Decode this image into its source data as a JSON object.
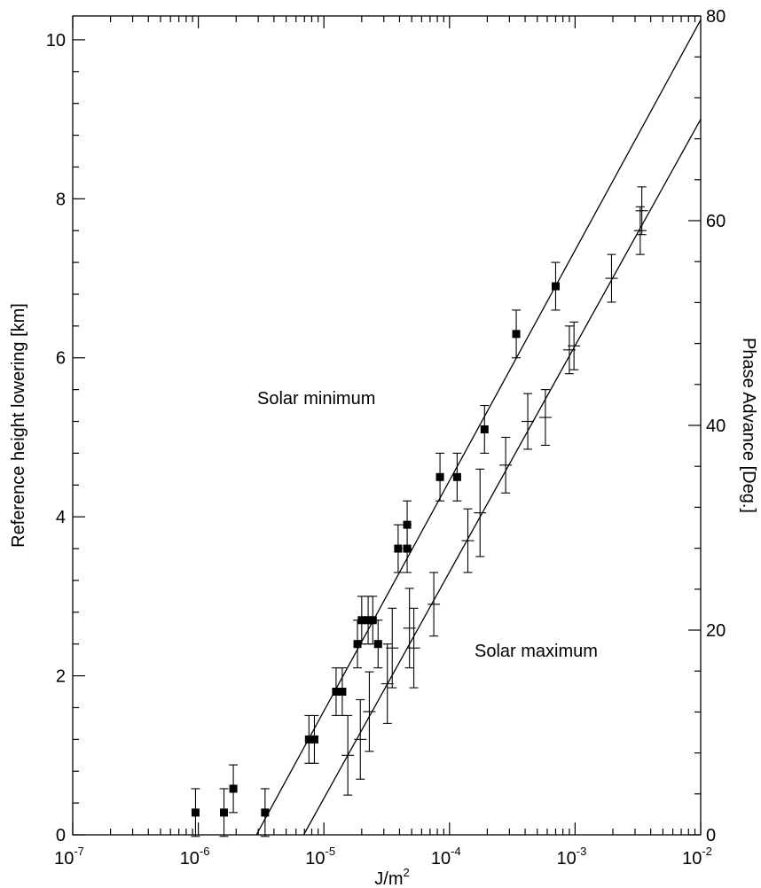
{
  "chart_data": {
    "type": "scatter",
    "xlabel": "J/m",
    "xlabel_sup": "2",
    "ylabel": "Reference height lowering [km]",
    "y2label": "Phase Advance [Deg.]",
    "xscale": "log",
    "xlim": [
      1e-07,
      0.01
    ],
    "ylim": [
      0,
      10.3
    ],
    "y2lim": [
      0,
      80
    ],
    "x_ticks": [
      {
        "value": 1e-07,
        "base": "10",
        "exp": "-7"
      },
      {
        "value": 1e-06,
        "base": "10",
        "exp": "-6"
      },
      {
        "value": 1e-05,
        "base": "10",
        "exp": "-5"
      },
      {
        "value": 0.0001,
        "base": "10",
        "exp": "-4"
      },
      {
        "value": 0.001,
        "base": "10",
        "exp": "-3"
      },
      {
        "value": 0.01,
        "base": "10",
        "exp": "-2"
      }
    ],
    "y_ticks": [
      "0",
      "2",
      "4",
      "6",
      "8",
      "10"
    ],
    "y2_ticks": [
      "0",
      "20",
      "40",
      "60",
      "80"
    ],
    "grid": false,
    "annotations": [
      {
        "id": "solar-minimum-label",
        "text": "Solar minimum"
      },
      {
        "id": "solar-maximum-label",
        "text": "Solar maximum"
      }
    ],
    "series": [
      {
        "name": "Solar minimum",
        "marker": "filled-square",
        "points": [
          {
            "x": 9.5e-07,
            "y": 0.28,
            "err": 0.3
          },
          {
            "x": 1.6e-06,
            "y": 0.28,
            "err": 0.3
          },
          {
            "x": 1.9e-06,
            "y": 0.58,
            "err": 0.3
          },
          {
            "x": 3.4e-06,
            "y": 0.28,
            "err": 0.3
          },
          {
            "x": 7.6e-06,
            "y": 1.2,
            "err": 0.3
          },
          {
            "x": 8.4e-06,
            "y": 1.2,
            "err": 0.3
          },
          {
            "x": 1.25e-05,
            "y": 1.8,
            "err": 0.3
          },
          {
            "x": 1.4e-05,
            "y": 1.8,
            "err": 0.3
          },
          {
            "x": 1.85e-05,
            "y": 2.4,
            "err": 0.3
          },
          {
            "x": 2e-05,
            "y": 2.7,
            "err": 0.3
          },
          {
            "x": 2.25e-05,
            "y": 2.7,
            "err": 0.3
          },
          {
            "x": 2.45e-05,
            "y": 2.7,
            "err": 0.3
          },
          {
            "x": 2.7e-05,
            "y": 2.4,
            "err": 0.3
          },
          {
            "x": 3.9e-05,
            "y": 3.6,
            "err": 0.3
          },
          {
            "x": 4.6e-05,
            "y": 3.6,
            "err": 0.3
          },
          {
            "x": 4.6e-05,
            "y": 3.9,
            "err": 0.3
          },
          {
            "x": 8.4e-05,
            "y": 4.5,
            "err": 0.3
          },
          {
            "x": 0.000115,
            "y": 4.5,
            "err": 0.3
          },
          {
            "x": 0.00019,
            "y": 5.1,
            "err": 0.3
          },
          {
            "x": 0.00034,
            "y": 6.3,
            "err": 0.3
          },
          {
            "x": 0.0007,
            "y": 6.9,
            "err": 0.3
          }
        ],
        "fit": {
          "x": [
            2.9e-06,
            0.01
          ],
          "y": [
            0,
            10.25
          ]
        }
      },
      {
        "name": "Solar maximum",
        "marker": "plus",
        "points": [
          {
            "x": 1.55e-05,
            "y": 1.0,
            "err": 0.5
          },
          {
            "x": 1.95e-05,
            "y": 1.2,
            "err": 0.5
          },
          {
            "x": 2.3e-05,
            "y": 1.55,
            "err": 0.5
          },
          {
            "x": 3.2e-05,
            "y": 1.9,
            "err": 0.5
          },
          {
            "x": 3.5e-05,
            "y": 2.35,
            "err": 0.5
          },
          {
            "x": 4.8e-05,
            "y": 2.6,
            "err": 0.5
          },
          {
            "x": 5.2e-05,
            "y": 2.35,
            "err": 0.5
          },
          {
            "x": 7.5e-05,
            "y": 2.9,
            "err": 0.4
          },
          {
            "x": 0.00014,
            "y": 3.7,
            "err": 0.4
          },
          {
            "x": 0.000175,
            "y": 4.05,
            "err": 0.55
          },
          {
            "x": 0.00028,
            "y": 4.65,
            "err": 0.35
          },
          {
            "x": 0.00042,
            "y": 5.2,
            "err": 0.35
          },
          {
            "x": 0.00058,
            "y": 5.25,
            "err": 0.35
          },
          {
            "x": 0.0009,
            "y": 6.1,
            "err": 0.3
          },
          {
            "x": 0.00098,
            "y": 6.15,
            "err": 0.3
          },
          {
            "x": 0.00195,
            "y": 7.0,
            "err": 0.3
          },
          {
            "x": 0.0033,
            "y": 7.6,
            "err": 0.3
          },
          {
            "x": 0.0034,
            "y": 7.85,
            "err": 0.3
          }
        ],
        "fit": {
          "x": [
            6.9e-06,
            0.01
          ],
          "y": [
            0,
            9.0
          ]
        }
      }
    ]
  }
}
